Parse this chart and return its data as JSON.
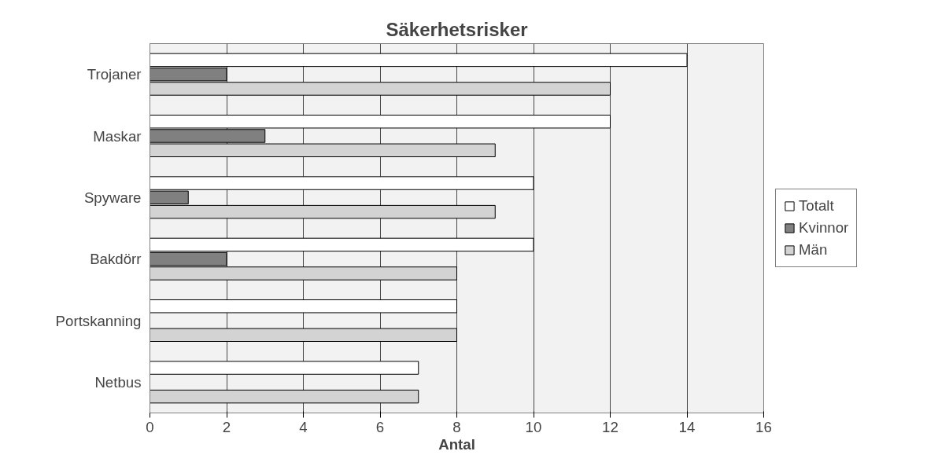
{
  "chart_data": {
    "type": "bar",
    "orientation": "horizontal",
    "title": "Säkerhetsrisker",
    "xlabel": "Antal",
    "categories": [
      "Trojaner",
      "Maskar",
      "Spyware",
      "Bakdörr",
      "Portskanning",
      "Netbus"
    ],
    "series": [
      {
        "name": "Totalt",
        "color": "#ffffff",
        "values": [
          14,
          12,
          10,
          10,
          8,
          7
        ]
      },
      {
        "name": "Kvinnor",
        "color": "#808080",
        "values": [
          2,
          3,
          1,
          2,
          0,
          0
        ]
      },
      {
        "name": "Män",
        "color": "#d3d3d3",
        "values": [
          12,
          9,
          9,
          8,
          8,
          7
        ]
      }
    ],
    "xlim": [
      0,
      16
    ],
    "xticks": [
      0,
      2,
      4,
      6,
      8,
      10,
      12,
      14,
      16
    ],
    "grid": "x",
    "legend": "right"
  }
}
